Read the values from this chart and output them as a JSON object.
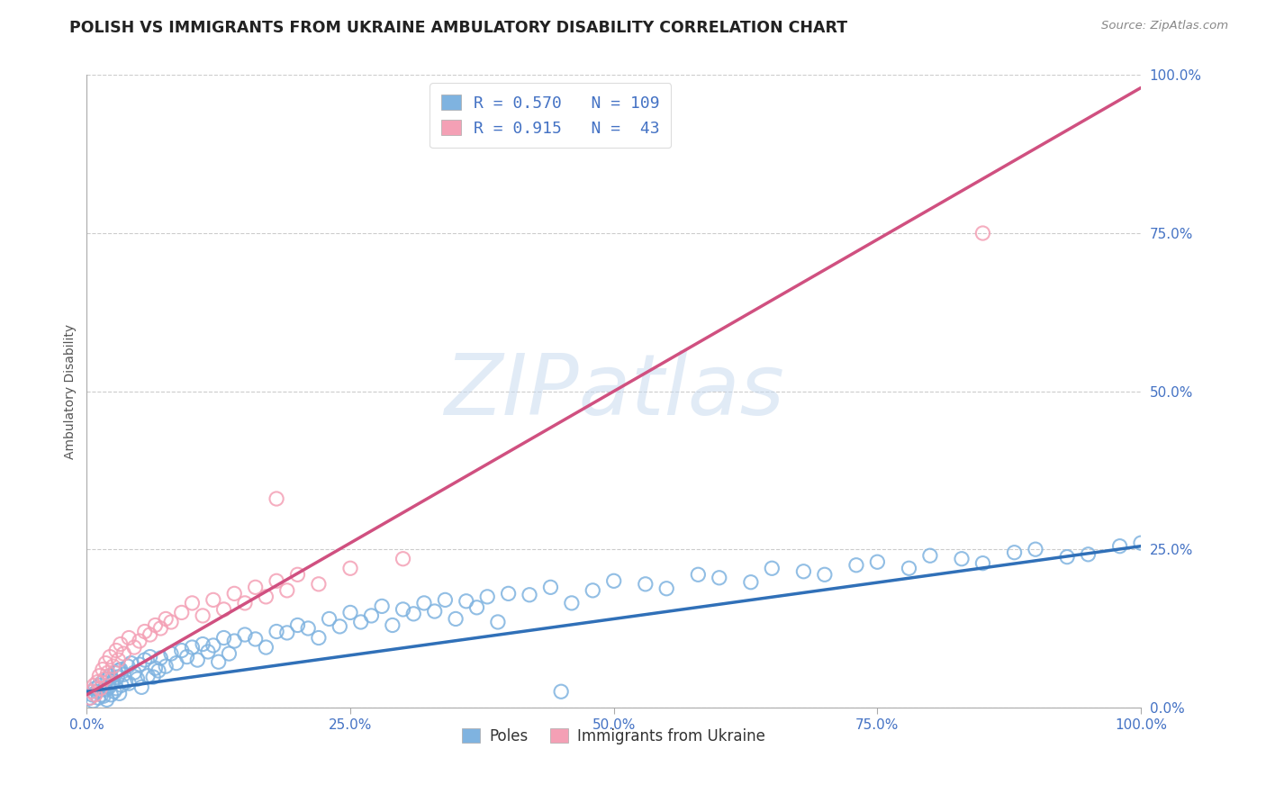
{
  "title": "POLISH VS IMMIGRANTS FROM UKRAINE AMBULATORY DISABILITY CORRELATION CHART",
  "source": "Source: ZipAtlas.com",
  "ylabel": "Ambulatory Disability",
  "xticklabels": [
    "0.0%",
    "25.0%",
    "50.0%",
    "75.0%",
    "100.0%"
  ],
  "yticklabels": [
    "0.0%",
    "25.0%",
    "50.0%",
    "75.0%",
    "100.0%"
  ],
  "xlim": [
    0,
    100
  ],
  "ylim": [
    0,
    100
  ],
  "legend_line1": "R = 0.570   N = 109",
  "legend_line2": "R = 0.915   N =  43",
  "legend_label1": "Poles",
  "legend_label2": "Immigrants from Ukraine",
  "blue_color": "#7FB3E0",
  "pink_color": "#F4A0B5",
  "blue_line_color": "#3070B8",
  "pink_line_color": "#D05080",
  "watermark": "ZIPatlas",
  "title_fontsize": 12.5,
  "axis_label_fontsize": 10,
  "tick_fontsize": 11,
  "blue_scatter_x": [
    0.3,
    0.5,
    0.6,
    0.8,
    1.0,
    1.1,
    1.2,
    1.4,
    1.5,
    1.6,
    1.7,
    1.8,
    1.9,
    2.0,
    2.1,
    2.2,
    2.3,
    2.4,
    2.5,
    2.6,
    2.7,
    2.8,
    2.9,
    3.0,
    3.1,
    3.2,
    3.3,
    3.5,
    3.7,
    3.9,
    4.0,
    4.2,
    4.5,
    4.8,
    5.0,
    5.2,
    5.5,
    5.8,
    6.0,
    6.3,
    6.5,
    6.8,
    7.0,
    7.5,
    8.0,
    8.5,
    9.0,
    9.5,
    10.0,
    10.5,
    11.0,
    11.5,
    12.0,
    12.5,
    13.0,
    13.5,
    14.0,
    15.0,
    16.0,
    17.0,
    18.0,
    19.0,
    20.0,
    21.0,
    22.0,
    23.0,
    24.0,
    25.0,
    26.0,
    27.0,
    28.0,
    29.0,
    30.0,
    31.0,
    32.0,
    33.0,
    34.0,
    35.0,
    36.0,
    37.0,
    38.0,
    39.0,
    40.0,
    42.0,
    44.0,
    46.0,
    48.0,
    50.0,
    53.0,
    55.0,
    58.0,
    60.0,
    63.0,
    65.0,
    68.0,
    70.0,
    73.0,
    75.0,
    78.0,
    80.0,
    83.0,
    85.0,
    88.0,
    90.0,
    93.0,
    95.0,
    98.0,
    100.0,
    45.0
  ],
  "blue_scatter_y": [
    1.5,
    2.0,
    1.0,
    3.0,
    2.5,
    1.5,
    3.5,
    2.0,
    4.0,
    1.8,
    3.0,
    2.8,
    1.2,
    4.5,
    3.2,
    5.0,
    2.0,
    3.8,
    4.2,
    2.5,
    5.5,
    3.0,
    4.8,
    5.8,
    2.2,
    6.0,
    3.5,
    5.2,
    4.0,
    6.5,
    3.8,
    7.0,
    5.5,
    4.5,
    6.8,
    3.2,
    7.5,
    5.0,
    8.0,
    4.8,
    6.2,
    5.8,
    7.8,
    6.5,
    8.5,
    7.0,
    9.0,
    8.0,
    9.5,
    7.5,
    10.0,
    8.8,
    9.8,
    7.2,
    11.0,
    8.5,
    10.5,
    11.5,
    10.8,
    9.5,
    12.0,
    11.8,
    13.0,
    12.5,
    11.0,
    14.0,
    12.8,
    15.0,
    13.5,
    14.5,
    16.0,
    13.0,
    15.5,
    14.8,
    16.5,
    15.2,
    17.0,
    14.0,
    16.8,
    15.8,
    17.5,
    13.5,
    18.0,
    17.8,
    19.0,
    16.5,
    18.5,
    20.0,
    19.5,
    18.8,
    21.0,
    20.5,
    19.8,
    22.0,
    21.5,
    21.0,
    22.5,
    23.0,
    22.0,
    24.0,
    23.5,
    22.8,
    24.5,
    25.0,
    23.8,
    24.2,
    25.5,
    26.0,
    2.5
  ],
  "pink_scatter_x": [
    0.3,
    0.5,
    0.7,
    0.8,
    1.0,
    1.2,
    1.3,
    1.5,
    1.7,
    1.8,
    2.0,
    2.2,
    2.5,
    2.8,
    3.0,
    3.2,
    3.5,
    4.0,
    4.5,
    5.0,
    5.5,
    6.0,
    6.5,
    7.0,
    7.5,
    8.0,
    9.0,
    10.0,
    11.0,
    12.0,
    13.0,
    14.0,
    15.0,
    16.0,
    17.0,
    18.0,
    19.0,
    20.0,
    22.0,
    25.0,
    30.0,
    85.0,
    18.0
  ],
  "pink_scatter_y": [
    1.5,
    2.5,
    3.5,
    2.0,
    4.0,
    5.0,
    3.0,
    6.0,
    4.5,
    7.0,
    5.5,
    8.0,
    6.5,
    9.0,
    7.5,
    10.0,
    8.5,
    11.0,
    9.5,
    10.5,
    12.0,
    11.5,
    13.0,
    12.5,
    14.0,
    13.5,
    15.0,
    16.5,
    14.5,
    17.0,
    15.5,
    18.0,
    16.5,
    19.0,
    17.5,
    20.0,
    18.5,
    21.0,
    19.5,
    22.0,
    23.5,
    75.0,
    33.0
  ],
  "blue_trend_x0": 0,
  "blue_trend_y0": 2.5,
  "blue_trend_x1": 100,
  "blue_trend_y1": 25.5,
  "pink_trend_x0": 0,
  "pink_trend_y0": 2.0,
  "pink_trend_x1": 100,
  "pink_trend_y1": 98.0,
  "background_color": "#FFFFFF",
  "plot_bg_color": "#FFFFFF",
  "grid_color": "#CCCCCC",
  "tick_color": "#4472C4",
  "axis_label_color": "#555555",
  "legend_text_color": "#4472C4"
}
